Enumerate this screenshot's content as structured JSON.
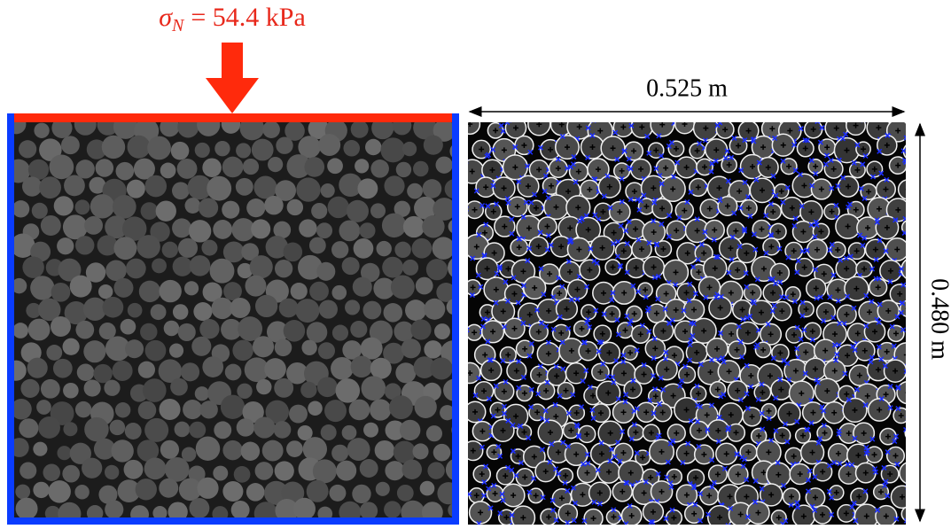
{
  "load_label": {
    "symbol": "σ",
    "subscript": "N",
    "rest": "= 54.4 kPa"
  },
  "width_label": "0.525 m",
  "height_label": "0.480 m"
}
